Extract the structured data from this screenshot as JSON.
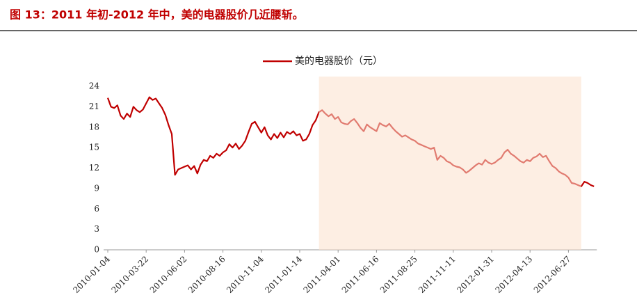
{
  "chart_data": {
    "type": "line",
    "title": "图 13：2011 年初-2012 年中，美的电器股价几近腰斩。",
    "categories": [
      "2010-01-04",
      null,
      null,
      null,
      null,
      null,
      null,
      null,
      null,
      null,
      null,
      null,
      "2010-03-22",
      null,
      null,
      null,
      null,
      null,
      null,
      null,
      null,
      null,
      null,
      null,
      "2010-06-02",
      null,
      null,
      null,
      null,
      null,
      null,
      null,
      null,
      null,
      null,
      null,
      "2010-08-16",
      null,
      null,
      null,
      null,
      null,
      null,
      null,
      null,
      null,
      null,
      null,
      "2010-11-04",
      null,
      null,
      null,
      null,
      null,
      null,
      null,
      null,
      null,
      null,
      null,
      "2011-01-14",
      null,
      null,
      null,
      null,
      null,
      null,
      null,
      null,
      null,
      null,
      null,
      "2011-04-01",
      null,
      null,
      null,
      null,
      null,
      null,
      null,
      null,
      null,
      null,
      null,
      "2011-06-16",
      null,
      null,
      null,
      null,
      null,
      null,
      null,
      null,
      null,
      null,
      null,
      "2011-08-25",
      null,
      null,
      null,
      null,
      null,
      null,
      null,
      null,
      null,
      null,
      null,
      "2011-11-11",
      null,
      null,
      null,
      null,
      null,
      null,
      null,
      null,
      null,
      null,
      null,
      "2012-01-31",
      null,
      null,
      null,
      null,
      null,
      null,
      null,
      null,
      null,
      null,
      null,
      "2012-04-13",
      null,
      null,
      null,
      null,
      null,
      null,
      null,
      null,
      null,
      null,
      null,
      "2012-06-27",
      null,
      null,
      null,
      null,
      null,
      null,
      null,
      null
    ],
    "series": [
      {
        "name": "美的电器股价（元）",
        "color": "#c00000",
        "values": [
          22.3,
          21.0,
          20.8,
          21.2,
          19.7,
          19.2,
          20.0,
          19.5,
          21.0,
          20.5,
          20.2,
          20.6,
          21.5,
          22.4,
          22.0,
          22.2,
          21.5,
          20.8,
          19.8,
          18.3,
          17.0,
          11.0,
          11.8,
          12.0,
          12.2,
          12.4,
          11.8,
          12.3,
          11.2,
          12.5,
          13.2,
          13.0,
          13.8,
          13.5,
          14.1,
          13.8,
          14.3,
          14.6,
          15.5,
          15.0,
          15.6,
          14.8,
          15.3,
          16.0,
          17.3,
          18.5,
          18.8,
          18.0,
          17.2,
          18.0,
          16.8,
          16.2,
          17.0,
          16.4,
          17.2,
          16.5,
          17.3,
          17.0,
          17.4,
          16.8,
          17.0,
          16.0,
          16.2,
          17.0,
          18.3,
          19.0,
          20.2,
          20.5,
          20.0,
          19.6,
          19.9,
          19.2,
          19.5,
          18.7,
          18.5,
          18.4,
          18.9,
          19.2,
          18.6,
          17.9,
          17.4,
          18.4,
          18.0,
          17.7,
          17.4,
          18.6,
          18.3,
          18.1,
          18.5,
          17.9,
          17.4,
          17.0,
          16.6,
          16.8,
          16.5,
          16.2,
          16.0,
          15.6,
          15.4,
          15.2,
          15.0,
          14.8,
          15.0,
          13.2,
          13.8,
          13.5,
          13.0,
          12.8,
          12.4,
          12.2,
          12.1,
          11.8,
          11.3,
          11.6,
          12.0,
          12.4,
          12.7,
          12.5,
          13.2,
          12.8,
          12.6,
          12.8,
          13.2,
          13.5,
          14.3,
          14.7,
          14.1,
          13.8,
          13.4,
          13.0,
          12.8,
          13.2,
          13.0,
          13.5,
          13.7,
          14.1,
          13.6,
          13.8,
          13.0,
          12.3,
          12.0,
          11.5,
          11.2,
          11.0,
          10.6,
          9.8,
          9.7,
          9.5,
          9.3,
          10.0,
          9.8,
          9.5,
          9.3
        ]
      }
    ],
    "ylim": [
      0,
      24
    ],
    "yticks": [
      0,
      3,
      6,
      9,
      12,
      15,
      18,
      21,
      24
    ],
    "grid": false,
    "legend": "top"
  }
}
